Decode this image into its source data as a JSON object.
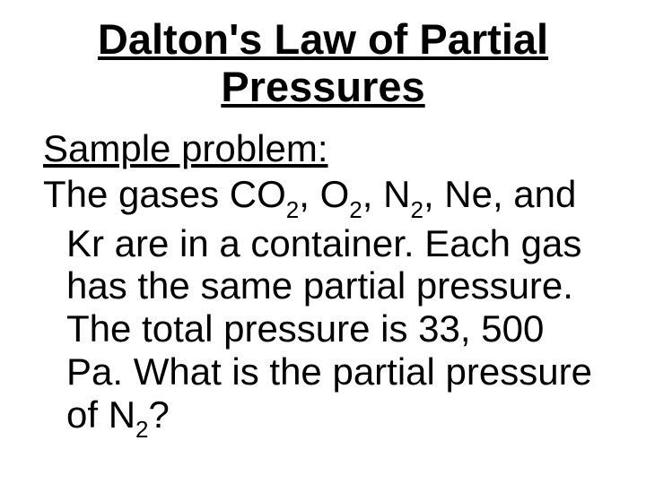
{
  "title_line1": "Dalton's Law of Partial",
  "title_line2": "Pressures",
  "subtitle": "Sample problem:",
  "body": {
    "p1": "The gases CO",
    "s1": "2",
    "p2": ", O",
    "s2": "2",
    "p3": ", N",
    "s3": "2",
    "p4": ", Ne, and Kr are in a container.  Each gas has the same partial pressure.  The total pressure is 33, 500 Pa.  What is the partial pressure of N",
    "s4": "2",
    "p5": "?"
  },
  "colors": {
    "background": "#ffffff",
    "text": "#000000"
  },
  "typography": {
    "title_fontsize": 47,
    "body_fontsize": 42,
    "font_family": "Arial"
  }
}
